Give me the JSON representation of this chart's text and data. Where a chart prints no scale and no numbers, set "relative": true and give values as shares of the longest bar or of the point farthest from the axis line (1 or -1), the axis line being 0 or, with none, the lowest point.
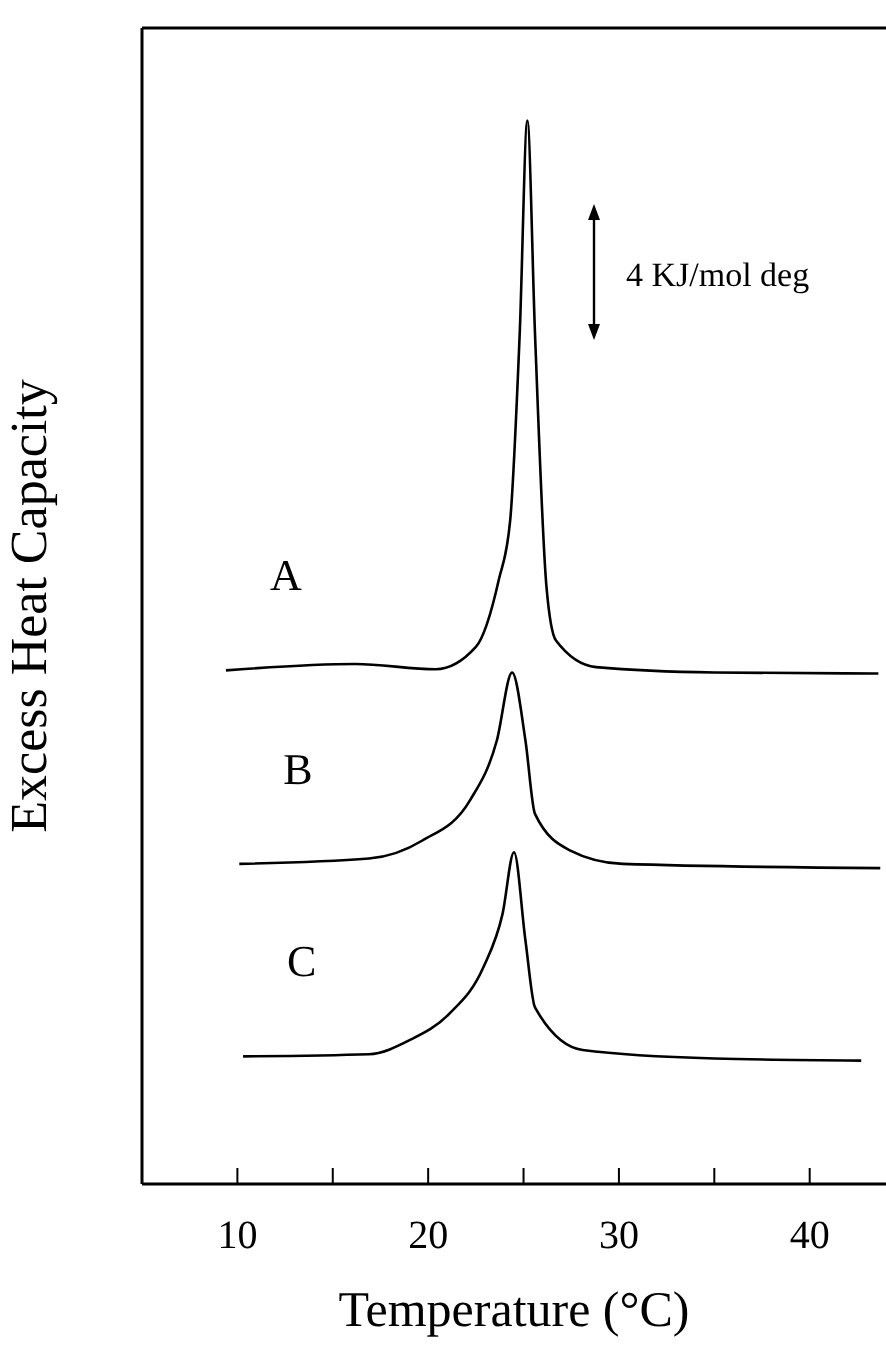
{
  "chart_data": {
    "type": "line",
    "xlabel": "Temperature (°C)",
    "ylabel": "Excess Heat Capacity",
    "relative": true,
    "tick_labels": "x",
    "xlim": [
      5,
      44
    ],
    "xticks": [
      10,
      {
        "value": 15,
        "label": null
      },
      20,
      {
        "value": 25,
        "label": null
      },
      30,
      {
        "value": 35,
        "label": null
      },
      40
    ],
    "annotations": [
      "4 KJ/mol deg"
    ],
    "series": [
      {
        "name": "A",
        "color": "#000000",
        "x": [
          9.4,
          16.2,
          20.4,
          22.5,
          23.7,
          24.3,
          24.8,
          25.2,
          25.6,
          26.2,
          26.7,
          28.8,
          35.0,
          43.6
        ],
        "values": [
          0.483,
          0.489,
          0.484,
          0.505,
          0.568,
          0.624,
          0.8,
          1.0,
          0.8,
          0.562,
          0.511,
          0.486,
          0.481,
          0.48
        ]
      },
      {
        "name": "B",
        "color": "#000000",
        "x": [
          10.1,
          16.9,
          19.7,
          22.2,
          23.6,
          24.4,
          25.1,
          25.6,
          27.4,
          30.2,
          43.7
        ],
        "values": [
          0.301,
          0.306,
          0.323,
          0.361,
          0.417,
          0.481,
          0.417,
          0.348,
          0.314,
          0.301,
          0.297
        ]
      },
      {
        "name": "C",
        "color": "#000000",
        "x": [
          10.3,
          16.9,
          19.0,
          21.1,
          22.9,
          23.9,
          24.5,
          25.1,
          25.6,
          28.1,
          35.0,
          42.7
        ],
        "values": [
          0.12,
          0.122,
          0.135,
          0.16,
          0.204,
          0.254,
          0.312,
          0.229,
          0.166,
          0.126,
          0.118,
          0.116
        ]
      }
    ]
  }
}
